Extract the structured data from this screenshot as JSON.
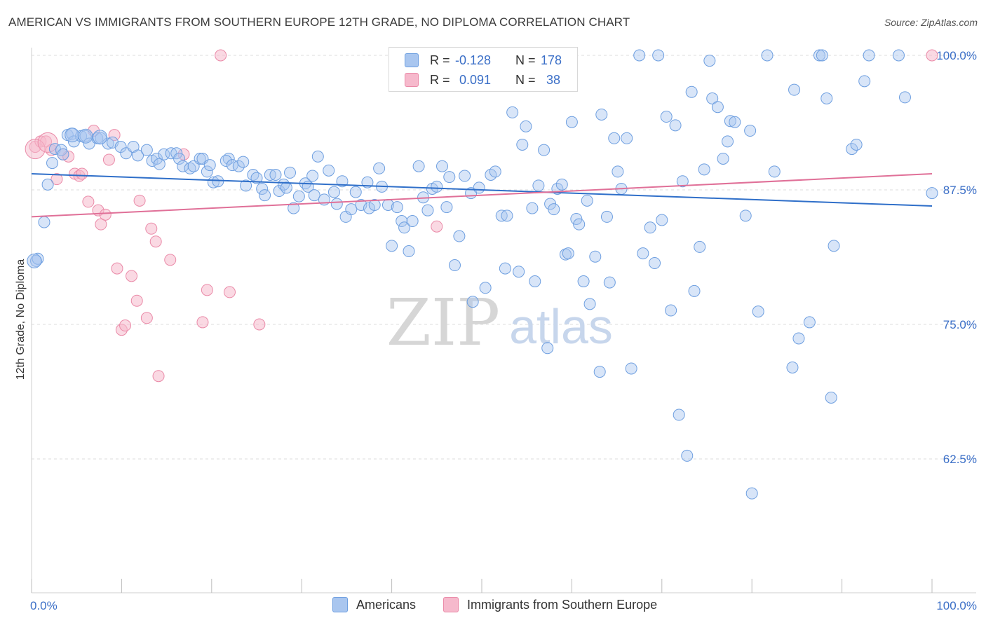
{
  "title": "AMERICAN VS IMMIGRANTS FROM SOUTHERN EUROPE 12TH GRADE, NO DIPLOMA CORRELATION CHART",
  "source": "Source: ZipAtlas.com",
  "watermark": {
    "zip": "ZIP",
    "atlas": "atlas"
  },
  "legend": {
    "rows": [
      {
        "r_label": "R =",
        "r_value": "-0.128",
        "n_label": "N =",
        "n_value": "178"
      },
      {
        "r_label": "R =",
        "r_value": "0.091",
        "n_label": "N =",
        "n_value": "38"
      }
    ]
  },
  "colors": {
    "blue_fill": "#a9c6ef",
    "blue_stroke": "#6e9fe0",
    "blue_line": "#2f6fc9",
    "pink_fill": "#f6b9cc",
    "pink_stroke": "#ea8aa8",
    "pink_line": "#e07098",
    "axis_label_blue": "#3b6fc7",
    "grid": "#dcdcdc"
  },
  "chart_data": {
    "type": "scatter",
    "xlabel": "",
    "ylabel": "12th Grade, No Diploma",
    "xlim": [
      0,
      100
    ],
    "ylim": [
      50,
      100
    ],
    "x_tick_labels": [
      "0.0%",
      "100.0%"
    ],
    "y_ticks": [
      62.5,
      75.0,
      87.5,
      100.0
    ],
    "y_tick_labels": [
      "62.5%",
      "75.0%",
      "87.5%",
      "100.0%"
    ],
    "grid": true,
    "series": [
      {
        "name": "Americans",
        "r": -0.128,
        "n": 178,
        "trend": {
          "x": [
            0,
            100
          ],
          "y": [
            89.0,
            86.0
          ]
        },
        "points": [
          [
            0.5,
            80.9
          ],
          [
            0.7,
            81.1
          ],
          [
            1.4,
            84.5
          ],
          [
            1.8,
            88.0
          ],
          [
            2.3,
            90.0
          ],
          [
            2.6,
            91.3
          ],
          [
            3.3,
            91.2
          ],
          [
            3.5,
            90.8
          ],
          [
            4.0,
            92.6
          ],
          [
            4.5,
            92.7
          ],
          [
            4.7,
            92.0
          ],
          [
            5.5,
            92.5
          ],
          [
            6.0,
            92.5
          ],
          [
            6.4,
            91.8
          ],
          [
            7.3,
            92.3
          ],
          [
            7.7,
            92.3
          ],
          [
            8.5,
            91.8
          ],
          [
            9.0,
            91.9
          ],
          [
            9.9,
            91.5
          ],
          [
            10.5,
            90.9
          ],
          [
            11.3,
            91.5
          ],
          [
            11.8,
            90.7
          ],
          [
            12.8,
            91.2
          ],
          [
            13.4,
            90.2
          ],
          [
            13.9,
            90.4
          ],
          [
            14.2,
            89.9
          ],
          [
            14.7,
            90.8
          ],
          [
            15.5,
            90.9
          ],
          [
            16.1,
            90.9
          ],
          [
            16.4,
            90.4
          ],
          [
            16.8,
            89.7
          ],
          [
            17.6,
            89.5
          ],
          [
            18.0,
            89.7
          ],
          [
            18.7,
            90.4
          ],
          [
            19.0,
            90.4
          ],
          [
            19.5,
            89.2
          ],
          [
            19.8,
            89.8
          ],
          [
            20.2,
            88.2
          ],
          [
            20.7,
            88.3
          ],
          [
            21.9,
            90.4
          ],
          [
            21.6,
            90.2
          ],
          [
            22.3,
            89.8
          ],
          [
            23.0,
            89.7
          ],
          [
            23.5,
            90.1
          ],
          [
            23.8,
            87.9
          ],
          [
            24.6,
            88.9
          ],
          [
            25.0,
            88.6
          ],
          [
            25.6,
            87.6
          ],
          [
            25.9,
            87.0
          ],
          [
            26.5,
            88.9
          ],
          [
            27.1,
            88.9
          ],
          [
            27.5,
            87.4
          ],
          [
            28.0,
            88.0
          ],
          [
            28.3,
            87.7
          ],
          [
            28.7,
            89.1
          ],
          [
            29.1,
            85.8
          ],
          [
            29.7,
            86.9
          ],
          [
            30.4,
            88.1
          ],
          [
            30.7,
            87.8
          ],
          [
            31.2,
            88.8
          ],
          [
            31.4,
            87.0
          ],
          [
            31.8,
            90.6
          ],
          [
            32.5,
            86.6
          ],
          [
            33.0,
            89.3
          ],
          [
            33.6,
            87.3
          ],
          [
            33.9,
            86.2
          ],
          [
            34.5,
            88.3
          ],
          [
            34.9,
            85.0
          ],
          [
            35.5,
            85.7
          ],
          [
            36.0,
            87.3
          ],
          [
            36.6,
            86.1
          ],
          [
            37.3,
            88.2
          ],
          [
            37.5,
            85.8
          ],
          [
            38.1,
            86.1
          ],
          [
            38.6,
            89.5
          ],
          [
            38.9,
            87.8
          ],
          [
            39.6,
            86.1
          ],
          [
            40.0,
            82.3
          ],
          [
            40.6,
            85.9
          ],
          [
            41.1,
            84.6
          ],
          [
            41.4,
            84.0
          ],
          [
            41.9,
            81.8
          ],
          [
            42.3,
            84.6
          ],
          [
            43.0,
            89.7
          ],
          [
            43.5,
            86.8
          ],
          [
            44.0,
            85.6
          ],
          [
            44.5,
            87.6
          ],
          [
            45.0,
            87.8
          ],
          [
            45.6,
            89.7
          ],
          [
            46.1,
            85.9
          ],
          [
            46.4,
            88.7
          ],
          [
            47.0,
            80.5
          ],
          [
            47.5,
            83.2
          ],
          [
            48.1,
            88.8
          ],
          [
            48.8,
            87.2
          ],
          [
            49.0,
            77.1
          ],
          [
            49.7,
            87.7
          ],
          [
            50.4,
            78.4
          ],
          [
            51.0,
            88.9
          ],
          [
            51.5,
            89.2
          ],
          [
            52.2,
            85.1
          ],
          [
            52.6,
            80.2
          ],
          [
            52.8,
            85.1
          ],
          [
            53.4,
            94.7
          ],
          [
            54.1,
            79.9
          ],
          [
            54.5,
            91.7
          ],
          [
            54.9,
            93.4
          ],
          [
            55.6,
            85.8
          ],
          [
            55.9,
            79.0
          ],
          [
            56.3,
            87.9
          ],
          [
            56.9,
            91.2
          ],
          [
            57.3,
            72.8
          ],
          [
            57.6,
            86.2
          ],
          [
            58.0,
            85.7
          ],
          [
            58.4,
            87.6
          ],
          [
            58.9,
            88.0
          ],
          [
            59.3,
            81.5
          ],
          [
            59.6,
            81.6
          ],
          [
            60.0,
            93.8
          ],
          [
            60.5,
            84.8
          ],
          [
            60.8,
            84.3
          ],
          [
            61.3,
            79.0
          ],
          [
            61.7,
            86.5
          ],
          [
            62.0,
            76.9
          ],
          [
            62.6,
            81.3
          ],
          [
            63.1,
            70.6
          ],
          [
            63.3,
            94.5
          ],
          [
            63.9,
            85.0
          ],
          [
            64.2,
            78.9
          ],
          [
            64.7,
            92.3
          ],
          [
            65.1,
            89.2
          ],
          [
            65.5,
            87.6
          ],
          [
            66.1,
            92.3
          ],
          [
            66.6,
            70.9
          ],
          [
            67.5,
            100.0
          ],
          [
            67.9,
            81.6
          ],
          [
            68.7,
            84.0
          ],
          [
            69.2,
            80.7
          ],
          [
            69.6,
            100.0
          ],
          [
            70.0,
            84.7
          ],
          [
            70.5,
            94.3
          ],
          [
            71.0,
            76.3
          ],
          [
            71.5,
            93.5
          ],
          [
            71.9,
            66.6
          ],
          [
            72.3,
            88.3
          ],
          [
            72.8,
            62.8
          ],
          [
            73.3,
            96.6
          ],
          [
            73.6,
            78.1
          ],
          [
            74.2,
            82.2
          ],
          [
            74.7,
            89.4
          ],
          [
            75.3,
            99.5
          ],
          [
            75.6,
            96.0
          ],
          [
            76.2,
            95.2
          ],
          [
            76.8,
            90.4
          ],
          [
            77.3,
            92.0
          ],
          [
            77.6,
            93.9
          ],
          [
            78.1,
            93.8
          ],
          [
            79.3,
            85.1
          ],
          [
            79.8,
            93.0
          ],
          [
            80.0,
            59.3
          ],
          [
            80.7,
            76.2
          ],
          [
            81.7,
            100.0
          ],
          [
            82.5,
            89.2
          ],
          [
            84.5,
            71.0
          ],
          [
            84.7,
            96.8
          ],
          [
            85.2,
            73.7
          ],
          [
            86.4,
            75.2
          ],
          [
            87.5,
            100.0
          ],
          [
            87.8,
            100.0
          ],
          [
            88.3,
            96.0
          ],
          [
            88.8,
            68.2
          ],
          [
            89.1,
            82.3
          ],
          [
            91.1,
            91.3
          ],
          [
            91.6,
            91.7
          ],
          [
            92.5,
            97.6
          ],
          [
            93.0,
            100.0
          ],
          [
            96.3,
            100.0
          ],
          [
            97.0,
            96.1
          ],
          [
            100.0,
            87.2
          ]
        ],
        "large_points": [
          [
            0.3,
            80.9
          ],
          [
            4.5,
            92.6
          ],
          [
            6.0,
            92.5
          ],
          [
            7.6,
            92.4
          ]
        ]
      },
      {
        "name": "Immigrants from Southern Europe",
        "r": 0.091,
        "n": 38,
        "trend": {
          "x": [
            0,
            100
          ],
          "y": [
            85.0,
            89.0
          ]
        },
        "points": [
          [
            0.4,
            91.5
          ],
          [
            1.0,
            92.0
          ],
          [
            1.6,
            92.0
          ],
          [
            2.2,
            91.2
          ],
          [
            2.8,
            88.5
          ],
          [
            3.5,
            90.8
          ],
          [
            4.1,
            90.6
          ],
          [
            4.8,
            89.0
          ],
          [
            5.3,
            88.8
          ],
          [
            5.6,
            89.0
          ],
          [
            6.3,
            86.4
          ],
          [
            6.9,
            93.0
          ],
          [
            7.4,
            85.6
          ],
          [
            7.7,
            84.3
          ],
          [
            8.2,
            85.2
          ],
          [
            8.6,
            90.3
          ],
          [
            9.2,
            92.6
          ],
          [
            9.5,
            80.2
          ],
          [
            10.0,
            74.5
          ],
          [
            10.4,
            74.9
          ],
          [
            11.1,
            79.5
          ],
          [
            11.7,
            77.2
          ],
          [
            12.0,
            86.5
          ],
          [
            12.8,
            75.6
          ],
          [
            13.3,
            83.9
          ],
          [
            13.8,
            82.7
          ],
          [
            14.1,
            70.2
          ],
          [
            15.4,
            81.0
          ],
          [
            16.9,
            90.8
          ],
          [
            19.0,
            75.2
          ],
          [
            19.5,
            78.2
          ],
          [
            21.0,
            100.0
          ],
          [
            22.0,
            78.0
          ],
          [
            25.3,
            75.0
          ],
          [
            45.0,
            84.1
          ],
          [
            100.0,
            100.0
          ]
        ],
        "large_points": [
          [
            0.4,
            91.3
          ],
          [
            1.8,
            91.9
          ]
        ]
      }
    ]
  },
  "bottom_legend": {
    "americans": "Americans",
    "immigrants": "Immigrants from Southern Europe"
  }
}
